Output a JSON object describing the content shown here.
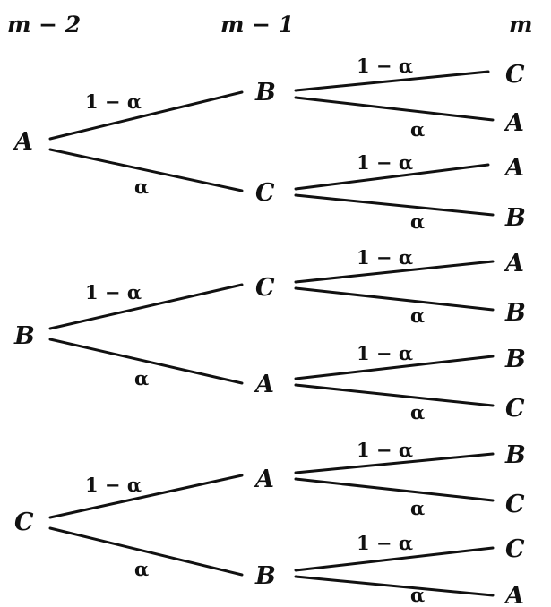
{
  "headers": [
    "m − 2",
    "m − 1",
    "m"
  ],
  "symbols": {
    "one_minus_alpha": "1 − α",
    "alpha": "α"
  },
  "trees": [
    {
      "root": "A",
      "children": [
        {
          "prob": "1 − α",
          "node": "B",
          "children": [
            {
              "prob": "1 − α",
              "node": "C"
            },
            {
              "prob": "α",
              "node": "A"
            }
          ]
        },
        {
          "prob": "α",
          "node": "C",
          "children": [
            {
              "prob": "1 − α",
              "node": "A"
            },
            {
              "prob": "α",
              "node": "B"
            }
          ]
        }
      ]
    },
    {
      "root": "B",
      "children": [
        {
          "prob": "1 − α",
          "node": "C",
          "children": [
            {
              "prob": "1 − α",
              "node": "A"
            },
            {
              "prob": "α",
              "node": "B"
            }
          ]
        },
        {
          "prob": "α",
          "node": "A",
          "children": [
            {
              "prob": "1 − α",
              "node": "B"
            },
            {
              "prob": "α",
              "node": "C"
            }
          ]
        }
      ]
    },
    {
      "root": "C",
      "children": [
        {
          "prob": "1 − α",
          "node": "A",
          "children": [
            {
              "prob": "1 − α",
              "node": "B"
            },
            {
              "prob": "α",
              "node": "C"
            }
          ]
        },
        {
          "prob": "α",
          "node": "B",
          "children": [
            {
              "prob": "1 − α",
              "node": "C"
            },
            {
              "prob": "α",
              "node": "A"
            }
          ]
        }
      ]
    }
  ]
}
